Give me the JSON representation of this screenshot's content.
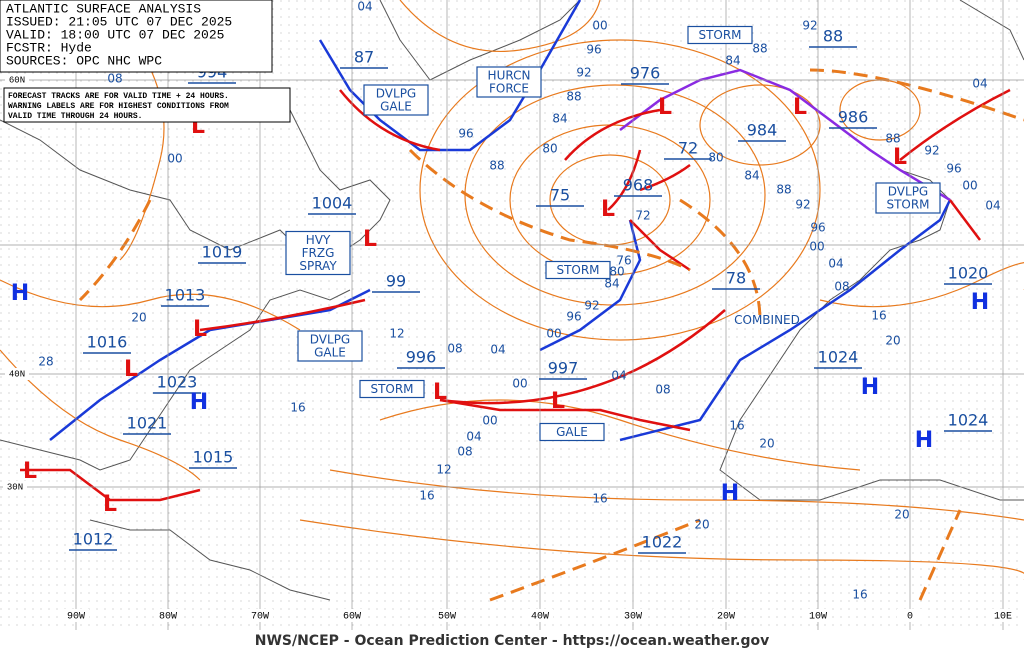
{
  "header": {
    "lines": [
      "ATLANTIC SURFACE ANALYSIS",
      "ISSUED: 21:05 UTC 07 DEC 2025",
      "VALID: 18:00 UTC 07 DEC 2025",
      "FCSTR: Hyde",
      "SOURCES: OPC NHC WPC"
    ]
  },
  "notice": {
    "lines": [
      "FORECAST TRACKS ARE FOR VALID TIME + 24 HOURS.",
      "WARNING LABELS ARE FOR HIGHEST CONDITIONS FROM",
      "VALID TIME THROUGH 24 HOURS."
    ]
  },
  "symbols": {
    "high": "H",
    "low": "L"
  },
  "centers": [
    "994",
    "87",
    "976",
    "88",
    "984",
    "986",
    "1004",
    "75",
    "968",
    "72",
    "1019",
    "1013",
    "99",
    "1016",
    "1023",
    "996",
    "997",
    "78",
    "1020",
    "1021",
    "1015",
    "1024",
    "1024",
    "1012",
    "1022"
  ],
  "warnings": [
    [
      "DVLPG",
      "GALE"
    ],
    [
      "HURCN",
      "FORCE"
    ],
    [
      "STORM"
    ],
    [
      "HVY",
      "FRZG",
      "SPRAY"
    ],
    [
      "DVLPG",
      "GALE"
    ],
    [
      "STORM"
    ],
    [
      "STORM"
    ],
    [
      "GALE"
    ],
    [
      "DVLPG",
      "STORM"
    ],
    [
      "COMBINED"
    ]
  ],
  "isobar_labels": [
    "00",
    "96",
    "92",
    "88",
    "84",
    "80",
    "96",
    "88",
    "92",
    "84",
    "88",
    "80",
    "84",
    "88",
    "92",
    "96",
    "00",
    "04",
    "04",
    "92",
    "96",
    "88",
    "12",
    "08",
    "04",
    "00",
    "96",
    "92",
    "76",
    "80",
    "84",
    "72",
    "00",
    "04",
    "08",
    "00",
    "04",
    "08",
    "12",
    "16",
    "16",
    "20",
    "16",
    "20",
    "20",
    "16",
    "16",
    "20",
    "08",
    "04",
    "00",
    "16",
    "20",
    "28",
    "00",
    "08",
    "04"
  ],
  "latitudes": [
    "60N",
    "40N",
    "30N"
  ],
  "longitudes": [
    "90W",
    "80W",
    "70W",
    "60W",
    "50W",
    "40W",
    "30W",
    "20W",
    "10W",
    "0",
    "10E"
  ],
  "footer": "NWS/NCEP - Ocean Prediction Center - https://ocean.weather.gov"
}
